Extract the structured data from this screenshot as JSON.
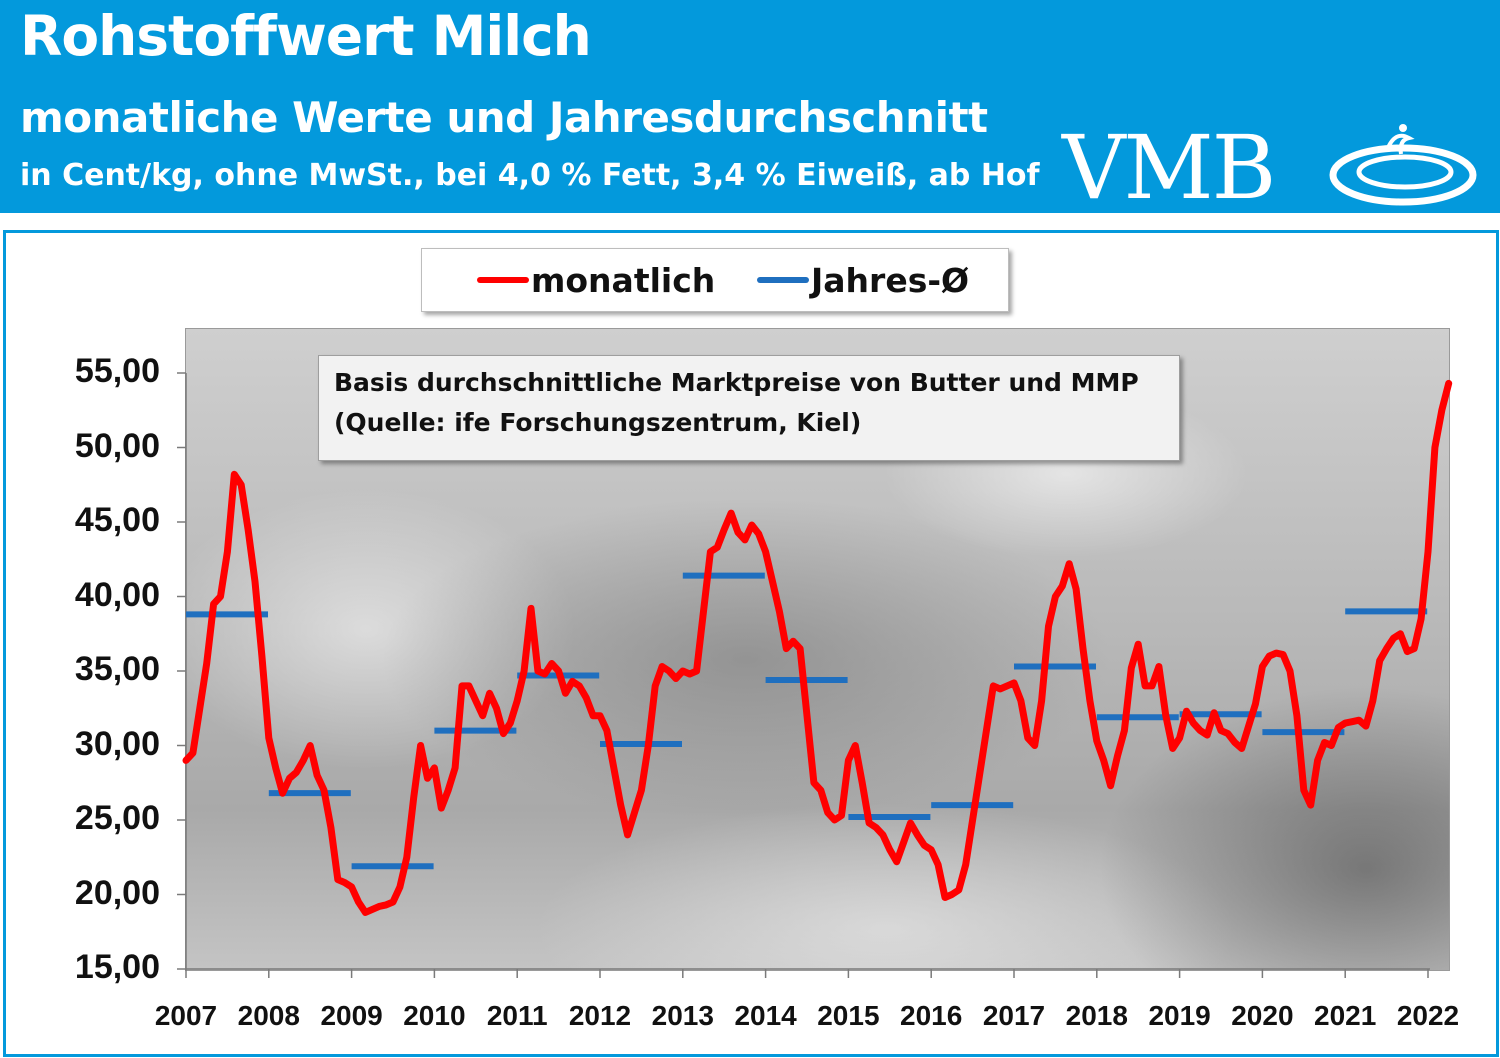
{
  "header": {
    "title": "Rohstoffwert Milch",
    "subtitle": "monatliche Werte und Jahresdurchschnitt",
    "unit_line": "in Cent/kg, ohne MwSt., bei 4,0 % Fett, 3,4 % Eiweiß, ab Hof",
    "logo_text": "VMB"
  },
  "colors": {
    "header_bg": "#0399dc",
    "monthly_line": "#ff0000",
    "annual_avg": "#1f6fbf"
  },
  "note": {
    "line1": "Basis durchschnittliche Marktpreise von Butter und MMP",
    "line2": "(Quelle: ife Forschungszentrum, Kiel)"
  },
  "chart_data": {
    "type": "line",
    "title": "Rohstoffwert Milch",
    "legend_position": "top-center",
    "grid": false,
    "ylim": [
      15,
      55
    ],
    "yticks": [
      "55,00",
      "50,00",
      "45,00",
      "40,00",
      "35,00",
      "30,00",
      "25,00",
      "20,00",
      "15,00"
    ],
    "xticks": [
      "2007",
      "2008",
      "2009",
      "2010",
      "2011",
      "2012",
      "2013",
      "2014",
      "2015",
      "2016",
      "2017",
      "2018",
      "2019",
      "2020",
      "2021",
      "2022"
    ],
    "x_start_year": 2007,
    "series": [
      {
        "name": "monatlich",
        "color": "#ff0000",
        "values": [
          29.0,
          29.5,
          32.5,
          35.5,
          39.5,
          40.0,
          43.0,
          48.2,
          47.5,
          44.5,
          41.0,
          36.0,
          30.5,
          28.5,
          26.8,
          27.8,
          28.2,
          29.0,
          30.0,
          28.0,
          27.0,
          24.5,
          21.0,
          20.8,
          20.5,
          19.5,
          18.8,
          19.0,
          19.2,
          19.3,
          19.5,
          20.5,
          22.5,
          26.5,
          30.0,
          27.8,
          28.5,
          25.8,
          27.0,
          28.5,
          34.0,
          34.0,
          33.0,
          32.0,
          33.5,
          32.5,
          30.8,
          31.5,
          33.0,
          35.0,
          39.2,
          35.0,
          34.8,
          35.5,
          35.0,
          33.5,
          34.3,
          34.0,
          33.2,
          32.0,
          32.0,
          31.0,
          28.5,
          26.0,
          24.0,
          25.5,
          27.0,
          30.0,
          34.0,
          35.3,
          35.0,
          34.5,
          35.0,
          34.8,
          35.0,
          39.0,
          43.0,
          43.3,
          44.5,
          45.6,
          44.3,
          43.8,
          44.8,
          44.2,
          43.0,
          41.0,
          39.0,
          36.5,
          37.0,
          36.5,
          32.0,
          27.5,
          27.0,
          25.5,
          25.0,
          25.3,
          29.0,
          30.0,
          27.5,
          24.8,
          24.5,
          24.0,
          23.0,
          22.2,
          23.5,
          24.8,
          24.0,
          23.3,
          23.0,
          22.0,
          19.8,
          20.0,
          20.3,
          22.0,
          25.0,
          28.0,
          31.0,
          34.0,
          33.8,
          34.0,
          34.2,
          33.0,
          30.5,
          30.0,
          33.0,
          38.0,
          40.0,
          40.7,
          42.2,
          40.5,
          36.5,
          33.0,
          30.3,
          29.0,
          27.3,
          29.3,
          31.0,
          35.2,
          36.8,
          34.0,
          34.0,
          35.3,
          32.0,
          29.8,
          30.5,
          32.3,
          31.5,
          31.0,
          30.7,
          32.2,
          31.0,
          30.8,
          30.2,
          29.8,
          31.3,
          32.8,
          35.3,
          36.0,
          36.2,
          36.1,
          35.0,
          32.0,
          27.0,
          26.0,
          29.0,
          30.2,
          30.0,
          31.2,
          31.5,
          31.6,
          31.7,
          31.3,
          33.0,
          35.7,
          36.5,
          37.2,
          37.5,
          36.3,
          36.5,
          38.5,
          43.0,
          50.0,
          52.5,
          54.3
        ]
      },
      {
        "name": "Jahres-Ø",
        "color": "#1f6fbf",
        "years": [
          2007,
          2008,
          2009,
          2010,
          2011,
          2012,
          2013,
          2014,
          2015,
          2016,
          2017,
          2018,
          2019,
          2020,
          2021
        ],
        "values": [
          38.8,
          26.8,
          21.9,
          31.0,
          34.7,
          30.1,
          41.4,
          34.4,
          25.2,
          26.0,
          35.3,
          31.9,
          32.1,
          30.9,
          39.0
        ]
      }
    ]
  }
}
